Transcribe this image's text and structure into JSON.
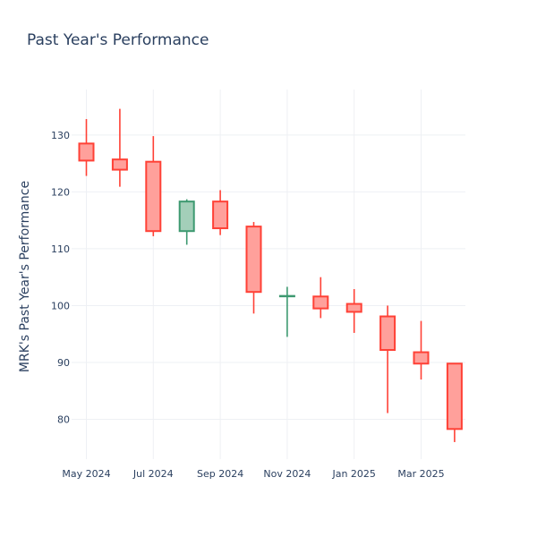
{
  "chart_data": {
    "type": "candlestick",
    "title": "Past Year's Performance",
    "xlabel": "",
    "ylabel": "MRK's Past Year's Performance",
    "ylim": [
      73,
      138
    ],
    "grid": true,
    "legend": "none",
    "y_ticks": [
      80,
      90,
      100,
      110,
      120,
      130
    ],
    "x_ticks": [
      {
        "label": "May 2024",
        "at": 0
      },
      {
        "label": "Jul 2024",
        "at": 2
      },
      {
        "label": "Sep 2024",
        "at": 4
      },
      {
        "label": "Nov 2024",
        "at": 6
      },
      {
        "label": "Jan 2025",
        "at": 8
      },
      {
        "label": "Mar 2025",
        "at": 10
      }
    ],
    "colors": {
      "increasing_line": "#3d9970",
      "increasing_fill": "#a3cfb9",
      "decreasing_line": "#ff4136",
      "decreasing_fill": "#ffa09b"
    },
    "candles": [
      {
        "month": "May 2024",
        "open": 128.5,
        "high": 132.8,
        "low": 122.8,
        "close": 125.5
      },
      {
        "month": "Jun 2024",
        "open": 125.7,
        "high": 134.6,
        "low": 120.9,
        "close": 123.9
      },
      {
        "month": "Jul 2024",
        "open": 125.3,
        "high": 129.8,
        "low": 112.2,
        "close": 113.1
      },
      {
        "month": "Aug 2024",
        "open": 113.1,
        "high": 118.7,
        "low": 110.7,
        "close": 118.3
      },
      {
        "month": "Sep 2024",
        "open": 118.3,
        "high": 120.3,
        "low": 112.4,
        "close": 113.6
      },
      {
        "month": "Oct 2024",
        "open": 113.9,
        "high": 114.7,
        "low": 98.6,
        "close": 102.4
      },
      {
        "month": "Nov 2024",
        "open": 101.7,
        "high": 103.3,
        "low": 94.5,
        "close": 101.7
      },
      {
        "month": "Dec 2024",
        "open": 101.6,
        "high": 105.0,
        "low": 97.8,
        "close": 99.5
      },
      {
        "month": "Jan 2025",
        "open": 100.3,
        "high": 102.9,
        "low": 95.2,
        "close": 98.9
      },
      {
        "month": "Feb 2025",
        "open": 98.1,
        "high": 100.0,
        "low": 81.1,
        "close": 92.2
      },
      {
        "month": "Mar 2025",
        "open": 91.8,
        "high": 97.3,
        "low": 87.0,
        "close": 89.8
      },
      {
        "month": "Apr 2025",
        "open": 89.8,
        "high": 89.8,
        "low": 76.0,
        "close": 78.3
      }
    ]
  }
}
